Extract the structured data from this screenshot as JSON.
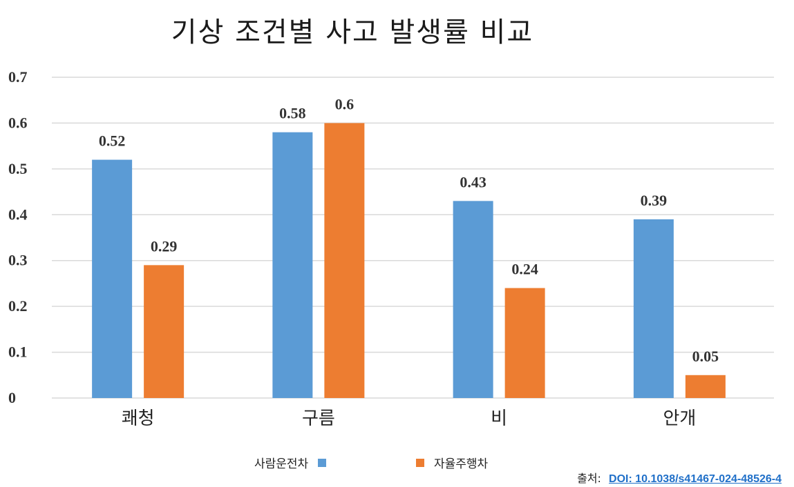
{
  "chart_data": {
    "type": "bar",
    "title": "기상 조건별 사고 발생률 비교",
    "categories": [
      "쾌청",
      "구름",
      "비",
      "안개"
    ],
    "series": [
      {
        "name": "사람운전차",
        "values": [
          0.52,
          0.58,
          0.43,
          0.39
        ],
        "color": "#5b9bd5"
      },
      {
        "name": "자율주행차",
        "values": [
          0.29,
          0.6,
          0.24,
          0.05
        ],
        "color": "#ed7d31"
      }
    ],
    "data_labels": [
      [
        "0.52",
        "0.58",
        "0.43",
        "0.39"
      ],
      [
        "0.29",
        "0.6",
        "0.24",
        "0.05"
      ]
    ],
    "ylim": [
      0,
      0.7
    ],
    "yticks": [
      0,
      0.1,
      0.2,
      0.3,
      0.4,
      0.5,
      0.6,
      0.7
    ],
    "ytick_labels": [
      "0",
      "0.1",
      "0.2",
      "0.3",
      "0.4",
      "0.5",
      "0.6",
      "0.7"
    ],
    "xlabel": "",
    "ylabel": "",
    "grid": true,
    "legend_position": "bottom",
    "gridline_color": "#d9d9d9"
  },
  "source": {
    "label": "출처:",
    "doi": "DOI: 10.1038/s41467-024-48526-4"
  }
}
